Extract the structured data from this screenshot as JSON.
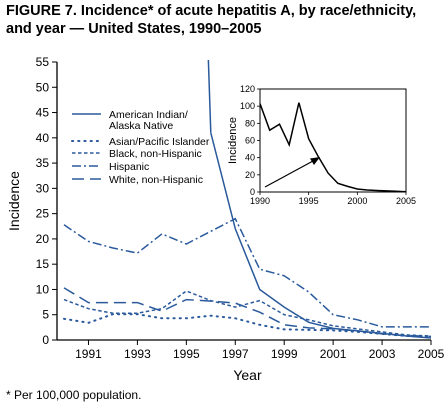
{
  "figure_title": "FIGURE 7. Incidence* of acute hepatitis A, by race/ethnicity, and year — United States, 1990–2005",
  "footnote": "* Per 100,000 population.",
  "colors": {
    "series": "#2a5a9c",
    "axis": "#000000",
    "arrow": "#000000"
  },
  "chart_data": [
    {
      "type": "line",
      "title": "",
      "xlabel": "Year",
      "ylabel": "Incidence",
      "xlim": [
        1990,
        2005
      ],
      "ylim": [
        0,
        55
      ],
      "x_ticks": [
        1991,
        1993,
        1995,
        1997,
        1999,
        2001,
        2003,
        2005
      ],
      "y_ticks": [
        0,
        5,
        10,
        15,
        20,
        25,
        30,
        35,
        40,
        45,
        50,
        55
      ],
      "grid": false,
      "legend_position": "center-left",
      "series": [
        {
          "name": "American Indian/ Alaska Native",
          "style": "solid",
          "x": [
            1996,
            1997,
            1998,
            1999,
            2000,
            2001,
            2002,
            2003,
            2004,
            2005
          ],
          "y": [
            41,
            22,
            10,
            6.5,
            3.5,
            2.3,
            1.8,
            1.3,
            0.8,
            0.4
          ]
        },
        {
          "name": "Asian/Pacific Islander",
          "style": "dotted",
          "x": [
            1990,
            1991,
            1992,
            1993,
            1994,
            1995,
            1996,
            1997,
            1998,
            1999,
            2000,
            2001,
            2002,
            2003,
            2004,
            2005
          ],
          "y": [
            4.2,
            3.4,
            5.1,
            5.1,
            4.3,
            4.3,
            4.8,
            4.3,
            3.0,
            2.1,
            2.0,
            1.9,
            1.6,
            1.2,
            0.8,
            0.6
          ]
        },
        {
          "name": "Black, non-Hispanic",
          "style": "dashed",
          "x": [
            1990,
            1991,
            1992,
            1993,
            1994,
            1995,
            1996,
            1997,
            1998,
            1999,
            2000,
            2001,
            2002,
            2003,
            2004,
            2005
          ],
          "y": [
            8.0,
            6.2,
            5.3,
            5.3,
            6.2,
            9.7,
            7.8,
            6.5,
            7.8,
            5.0,
            4.0,
            2.8,
            2.2,
            1.6,
            1.0,
            0.8
          ]
        },
        {
          "name": "Hispanic",
          "style": "dash-dot",
          "x": [
            1990,
            1991,
            1992,
            1993,
            1994,
            1995,
            1996,
            1997,
            1998,
            1999,
            2000,
            2001,
            2002,
            2003,
            2004,
            2005
          ],
          "y": [
            22.8,
            19.5,
            18.2,
            17.2,
            21.0,
            19.0,
            21.5,
            24.0,
            14.0,
            12.7,
            9.5,
            5.0,
            4.0,
            2.6,
            2.6,
            2.6
          ]
        },
        {
          "name": "White, non-Hispanic",
          "style": "long-dash",
          "x": [
            1990,
            1991,
            1992,
            1993,
            1994,
            1995,
            1996,
            1997,
            1998,
            1999,
            2000,
            2001,
            2002,
            2003,
            2004,
            2005
          ],
          "y": [
            10.3,
            7.4,
            7.4,
            7.4,
            5.7,
            8.0,
            7.7,
            7.3,
            5.5,
            3.0,
            2.4,
            2.2,
            1.8,
            1.2,
            0.9,
            0.7
          ]
        }
      ]
    },
    {
      "type": "line",
      "title": "",
      "xlabel": "",
      "ylabel": "Incidence",
      "xlim": [
        1990,
        2005
      ],
      "ylim": [
        0,
        120
      ],
      "x_ticks": [
        1990,
        1995,
        2000,
        2005
      ],
      "y_ticks": [
        0,
        20,
        40,
        60,
        80,
        100,
        120
      ],
      "grid": false,
      "series": [
        {
          "style": "solid",
          "x": [
            1990,
            1991,
            1992,
            1993,
            1994,
            1995,
            1996,
            1997,
            1998,
            1999,
            2000,
            2001,
            2002,
            2003,
            2004,
            2005
          ],
          "y": [
            103,
            72,
            79,
            55,
            104,
            62,
            41,
            22,
            10,
            6.5,
            3.5,
            2.3,
            1.8,
            1.3,
            0.8,
            0.4
          ]
        }
      ]
    }
  ]
}
